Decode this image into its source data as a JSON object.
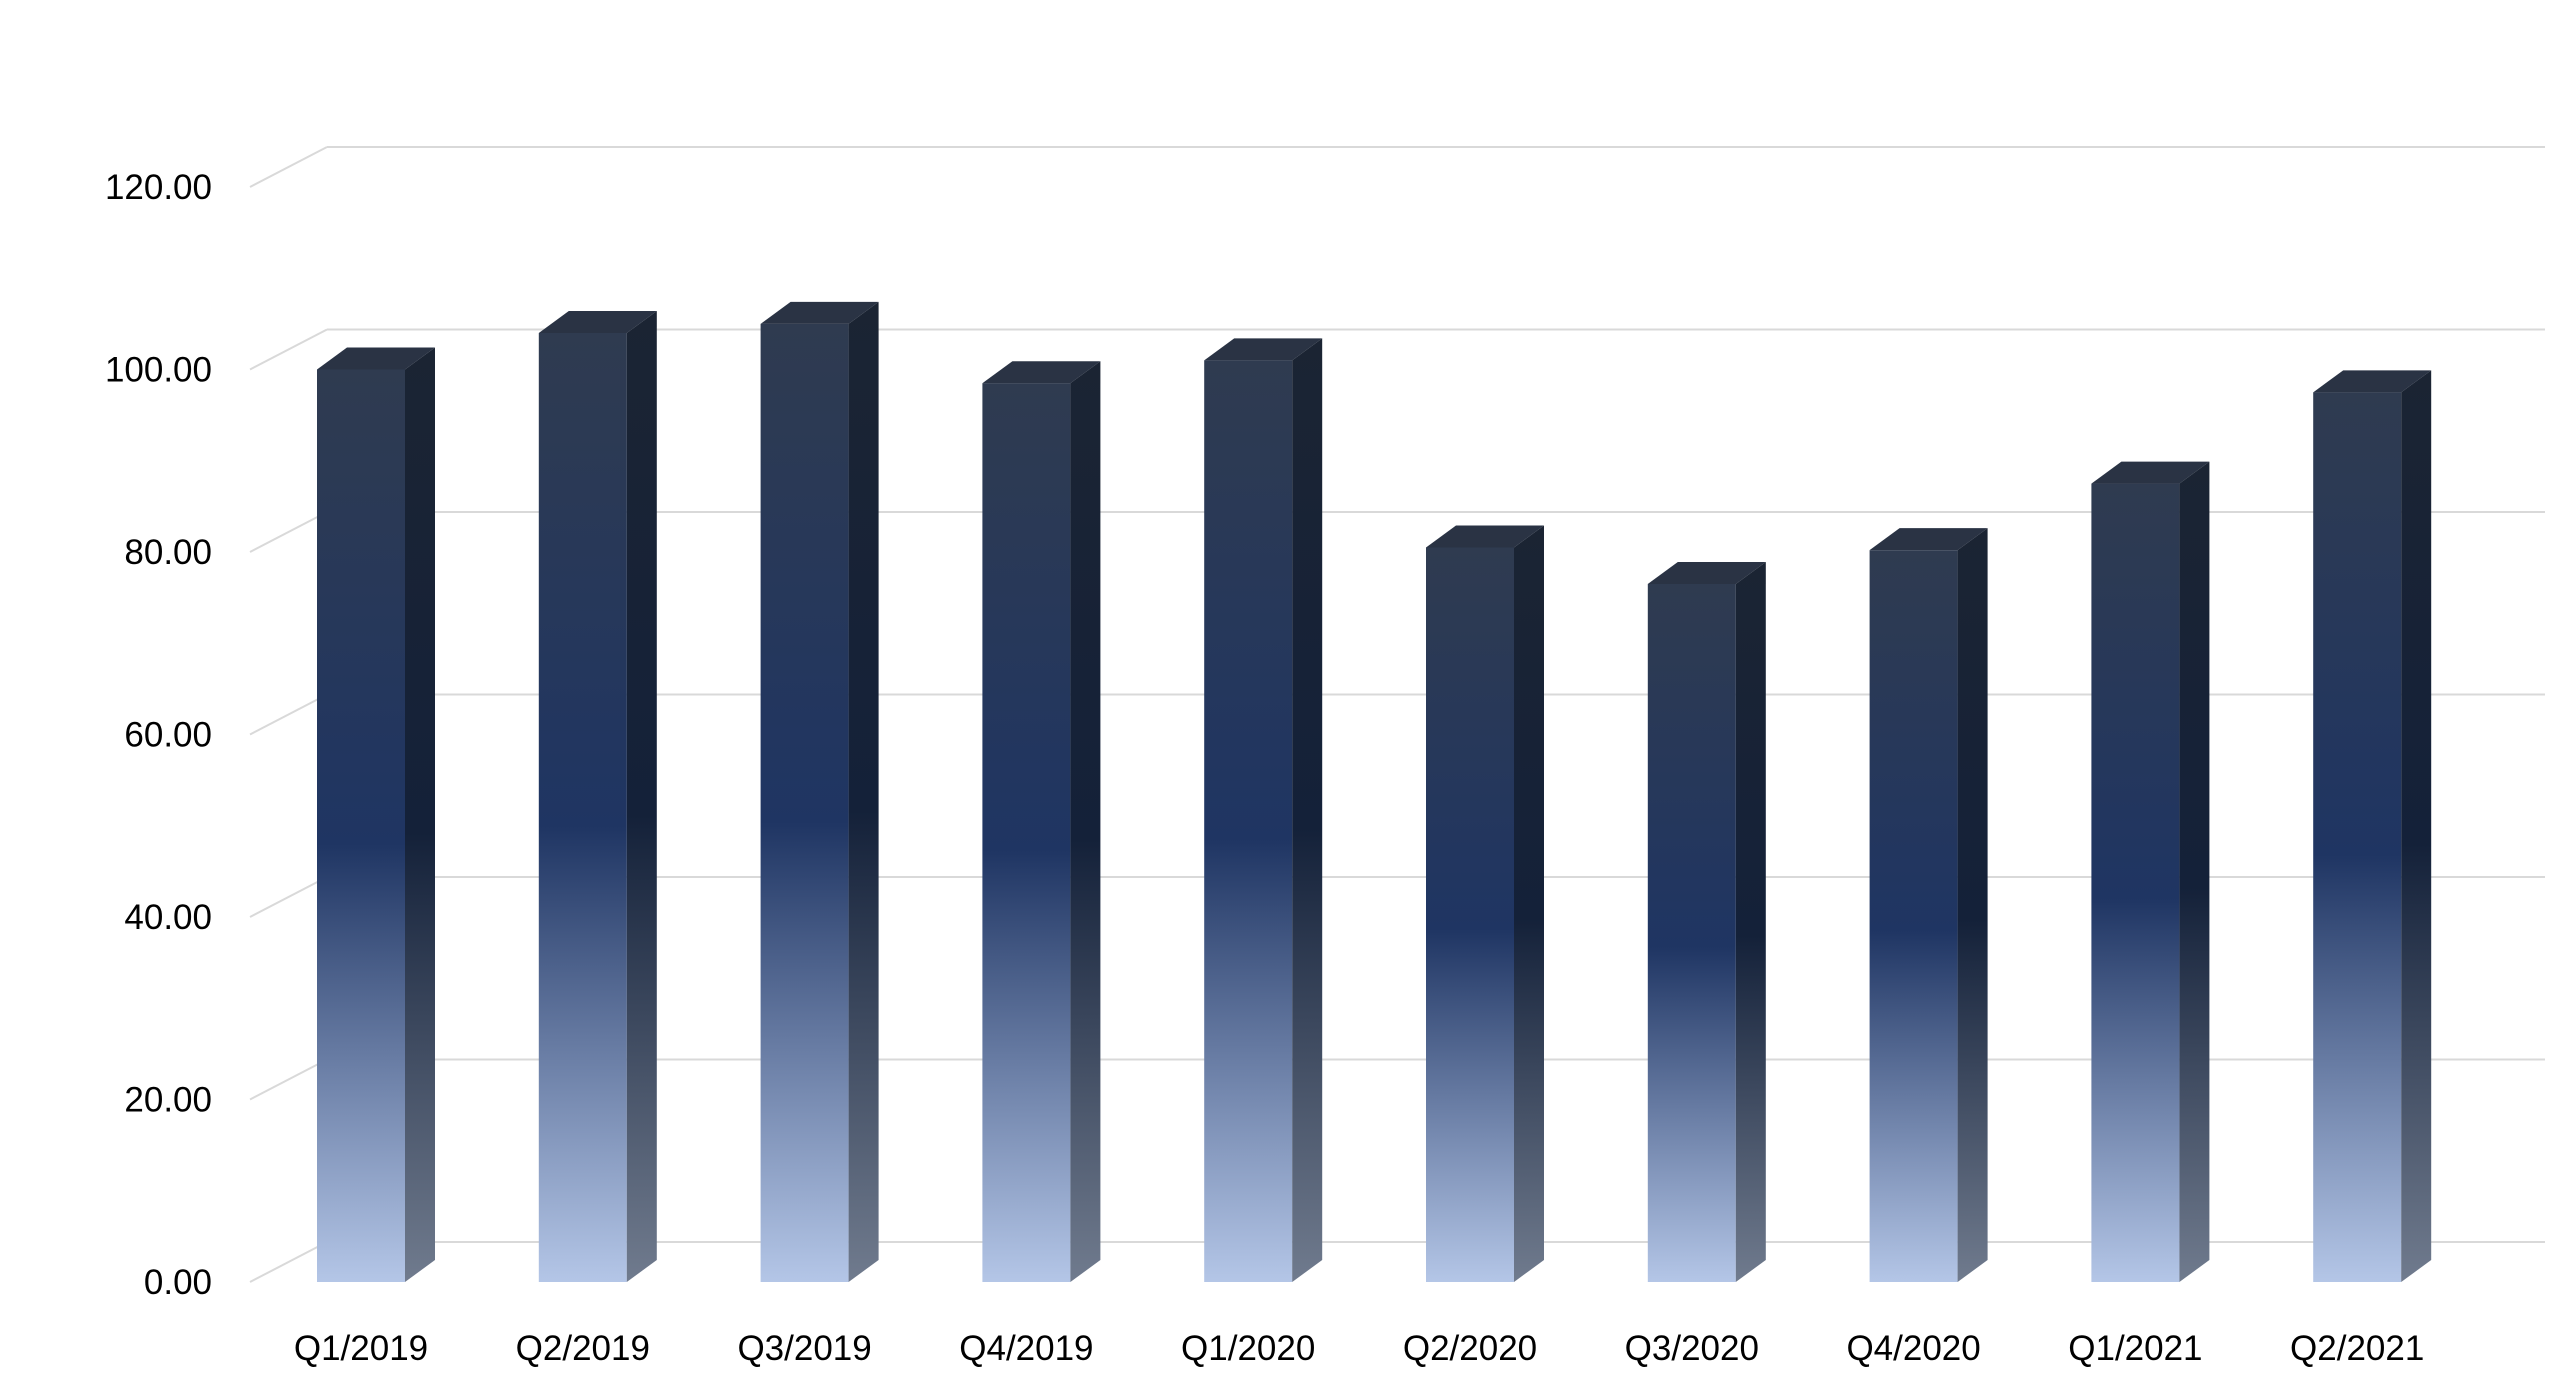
{
  "chart_data": {
    "type": "bar",
    "style": "3d-column",
    "title": "",
    "xlabel": "",
    "ylabel": "",
    "categories": [
      "Q1/2019",
      "Q2/2019",
      "Q3/2019",
      "Q4/2019",
      "Q1/2020",
      "Q2/2020",
      "Q3/2020",
      "Q4/2020",
      "Q1/2021",
      "Q2/2021"
    ],
    "values": [
      100.0,
      104.0,
      105.0,
      98.5,
      101.0,
      80.5,
      76.5,
      80.2,
      87.5,
      97.5
    ],
    "ylim": [
      0,
      120
    ],
    "yticks": [
      "0.00",
      "20.00",
      "40.00",
      "60.00",
      "80.00",
      "100.00",
      "120.00"
    ],
    "grid": true,
    "legend": "none",
    "colors": {
      "bar_top": "#2f3b50",
      "bar_mid": "#1f3563",
      "bar_bottom": "#b4c6e7",
      "side_top": "#1b2433",
      "side_bottom": "#707b8e",
      "cap": "#2a3344",
      "grid": "#d9d9d9"
    }
  }
}
